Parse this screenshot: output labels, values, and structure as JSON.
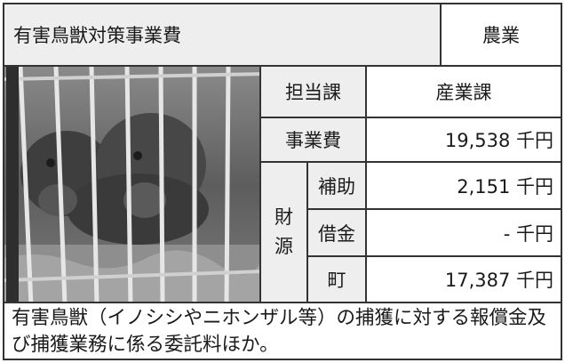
{
  "header": {
    "title": "有害鳥獣対策事業費",
    "category": "農業"
  },
  "photo": {
    "subject": "wild-boar-in-cage-photo"
  },
  "table": {
    "department_label": "担当課",
    "department_value": "産業課",
    "cost_label": "事業費",
    "cost_value": "19,538 千円",
    "funding_label_1": "財",
    "funding_label_2": "源",
    "rows": [
      {
        "label": "補助",
        "value": "2,151 千円"
      },
      {
        "label": "借金",
        "value": "- 千円"
      },
      {
        "label": "町",
        "value": "17,387 千円"
      }
    ]
  },
  "description": "有害鳥獣（イノシシやニホンザル等）の捕獲に対する報償金及び捕獲業務に係る委託料ほか。",
  "colors": {
    "label_bg": "#eeeeee",
    "border": "#333333"
  }
}
